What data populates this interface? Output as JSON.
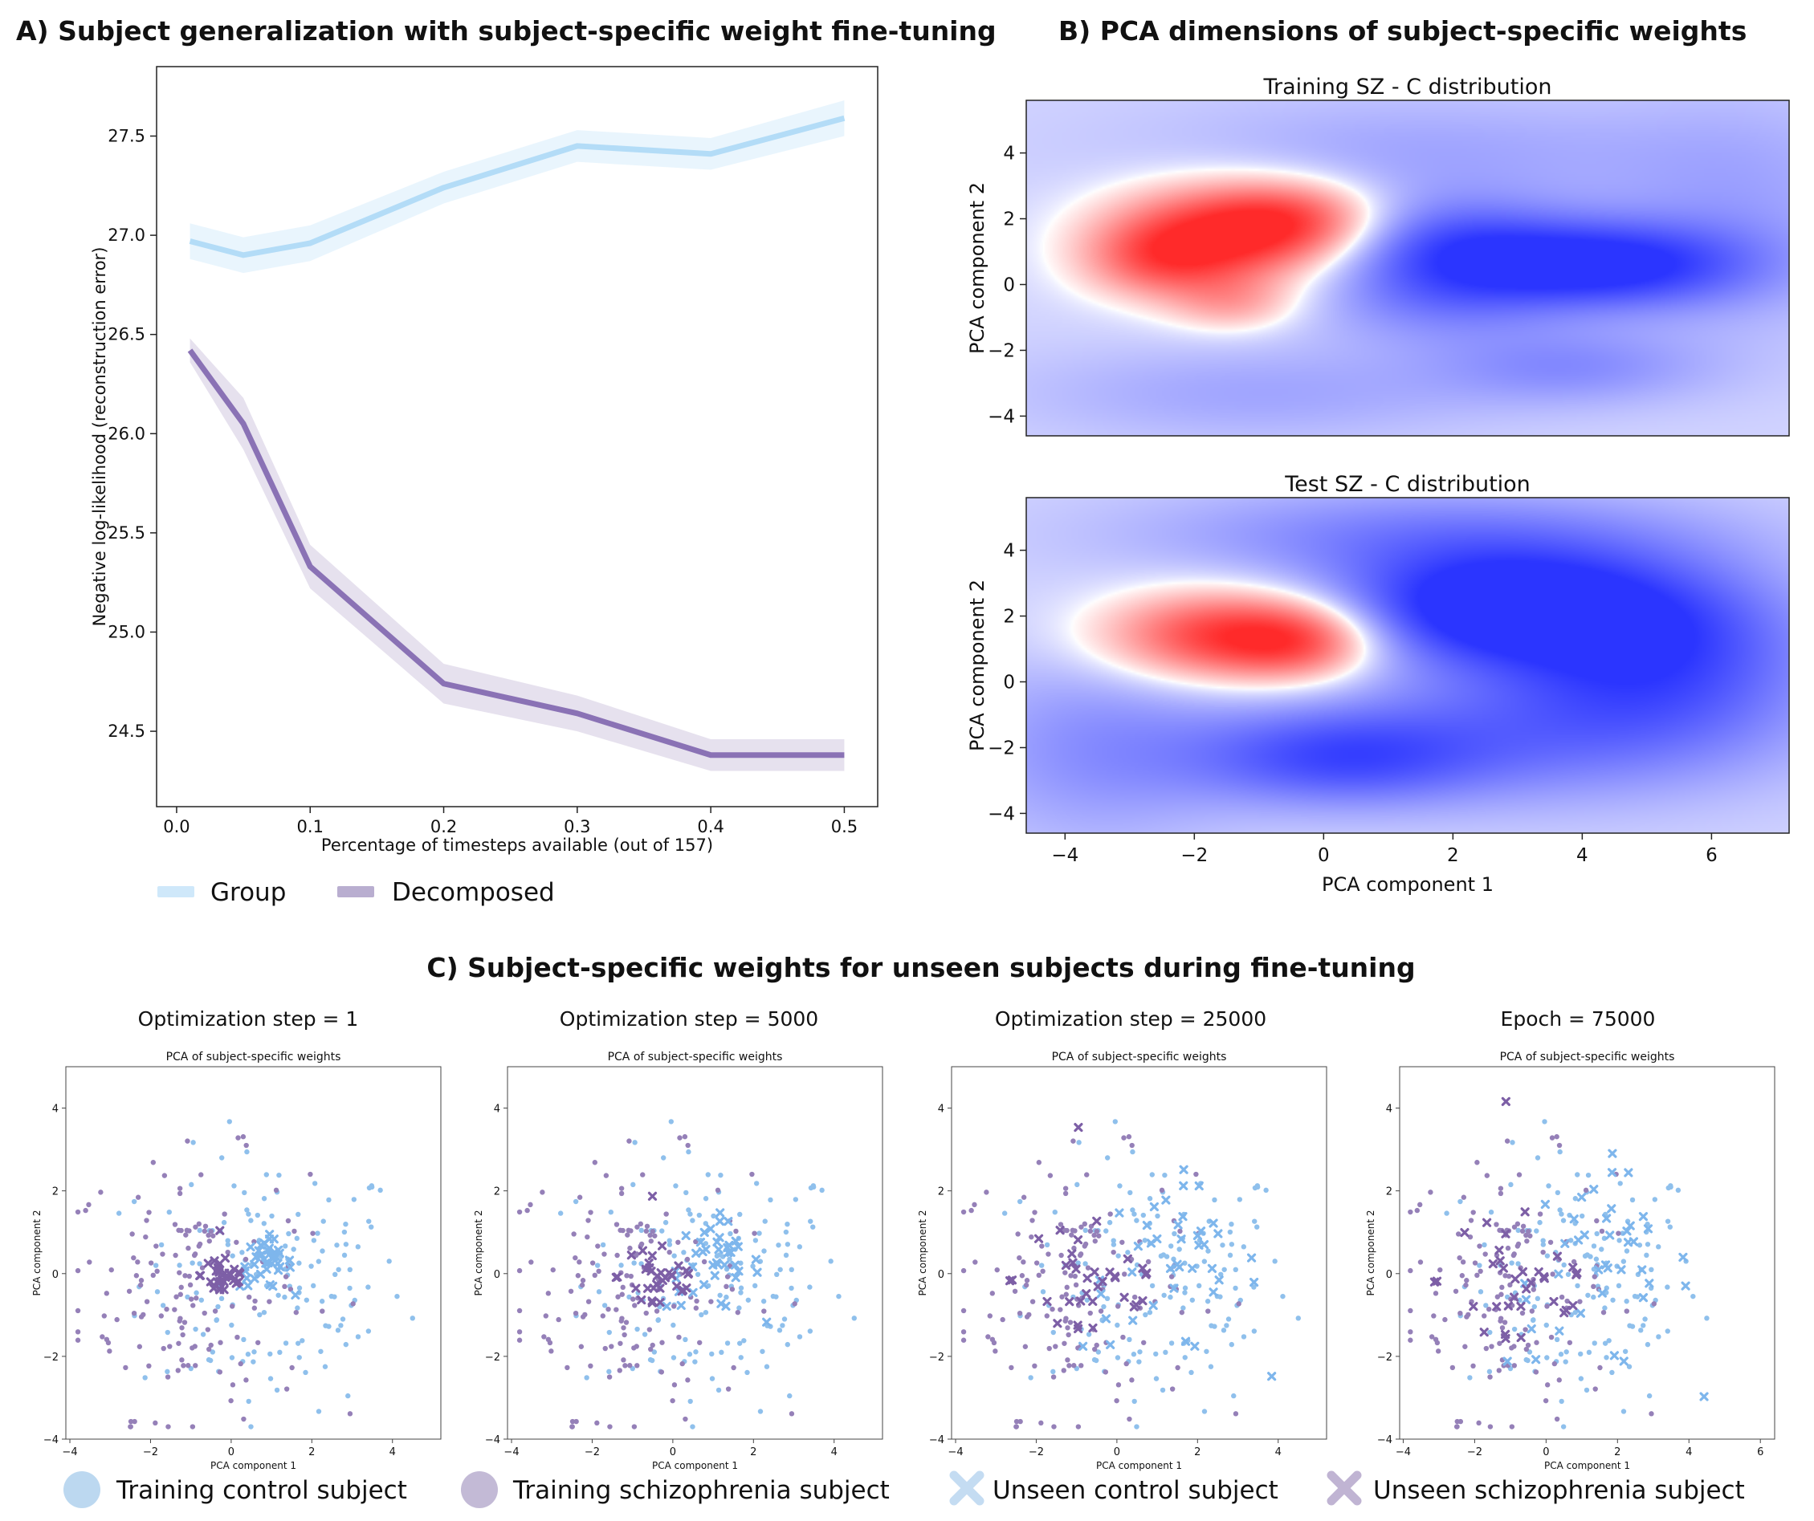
{
  "figure": {
    "panel_a_title": "A)  Subject generalization with subject-specific weight fine-tuning",
    "panel_b_title": "B)  PCA dimensions of subject-specific weights",
    "panel_c_title": "C)  Subject-specific weights for unseen subjects during fine-tuning"
  },
  "colors": {
    "group": "#b3dcf7",
    "decomposed": "#8a72b5",
    "training_control": "#8fc0ec",
    "training_schizophrenia": "#9580b8",
    "unseen_control": "#7eb6ec",
    "unseen_schizophrenia": "#7d5fa6",
    "heat_red": "#ff2a2a",
    "heat_blue": "#2b35ff"
  },
  "chart_data": [
    {
      "id": "A",
      "type": "line",
      "title": "A)  Subject generalization with subject-specific weight fine-tuning",
      "xlabel": "Percentage of timesteps available (out of 157)",
      "ylabel": "Negative log-likelihood (reconstruction error)",
      "xlim": [
        -0.015,
        0.525
      ],
      "ylim": [
        24.12,
        27.85
      ],
      "xticks": [
        0.0,
        0.1,
        0.2,
        0.3,
        0.4,
        0.5
      ],
      "xtick_labels": [
        "0.0",
        "0.1",
        "0.2",
        "0.3",
        "0.4",
        "0.5"
      ],
      "yticks": [
        24.5,
        25.0,
        25.5,
        26.0,
        26.5,
        27.0,
        27.5
      ],
      "ytick_labels": [
        "24.5",
        "25.0",
        "25.5",
        "26.0",
        "26.5",
        "27.0",
        "27.5"
      ],
      "legend": [
        "Group",
        "Decomposed"
      ],
      "legend_position": "below",
      "x": [
        0.01,
        0.05,
        0.1,
        0.2,
        0.3,
        0.4,
        0.5
      ],
      "series": [
        {
          "name": "Group",
          "values": [
            26.97,
            26.9,
            26.96,
            27.24,
            27.45,
            27.41,
            27.59
          ],
          "lower": [
            26.88,
            26.81,
            26.87,
            27.16,
            27.37,
            27.33,
            27.5
          ],
          "upper": [
            27.06,
            26.99,
            27.05,
            27.32,
            27.53,
            27.49,
            27.68
          ]
        },
        {
          "name": "Decomposed",
          "values": [
            26.42,
            26.05,
            25.33,
            24.74,
            24.59,
            24.38,
            24.38
          ],
          "lower": [
            26.36,
            25.92,
            25.22,
            24.64,
            24.5,
            24.3,
            24.3
          ],
          "upper": [
            26.48,
            26.18,
            25.44,
            24.84,
            24.68,
            24.46,
            24.46
          ]
        }
      ]
    },
    {
      "id": "B1",
      "type": "heatmap",
      "title": "Training SZ - C distribution",
      "ylabel": "PCA component 2",
      "xlim": [
        -4.6,
        7.2
      ],
      "ylim": [
        -4.6,
        5.6
      ],
      "yticks": [
        -4,
        -2,
        0,
        2,
        4
      ],
      "ytick_labels": [
        "−4",
        "−2",
        "0",
        "2",
        "4"
      ],
      "blobs": [
        {
          "x": -1.6,
          "y": 1.5,
          "sx": 1.25,
          "sy": 1.1,
          "w": 1.0
        },
        {
          "x": -0.4,
          "y": 2.0,
          "sx": 0.9,
          "sy": 0.8,
          "w": 0.55
        },
        {
          "x": -2.6,
          "y": 0.7,
          "sx": 0.8,
          "sy": 0.8,
          "w": 0.45
        },
        {
          "x": -1.4,
          "y": -0.6,
          "sx": 0.7,
          "sy": 0.6,
          "w": 0.35
        },
        {
          "x": 4.4,
          "y": 0.6,
          "sx": 1.5,
          "sy": 0.9,
          "w": -0.85
        },
        {
          "x": 2.0,
          "y": 1.2,
          "sx": 1.3,
          "sy": 1.0,
          "w": -0.55
        },
        {
          "x": 1.8,
          "y": -0.4,
          "sx": 1.4,
          "sy": 1.0,
          "w": -0.35
        },
        {
          "x": 3.8,
          "y": -2.5,
          "sx": 1.5,
          "sy": 0.8,
          "w": -0.3
        },
        {
          "x": 1.5,
          "y": 4.0,
          "sx": 3.0,
          "sy": 1.2,
          "w": -0.2
        },
        {
          "x": -1.0,
          "y": -3.3,
          "sx": 2.5,
          "sy": 1.0,
          "w": -0.2
        },
        {
          "x": 6.5,
          "y": 2.0,
          "sx": 1.5,
          "sy": 2.5,
          "w": -0.2
        }
      ]
    },
    {
      "id": "B2",
      "type": "heatmap",
      "title": "Test SZ - C distribution",
      "xlabel": "PCA component 1",
      "ylabel": "PCA component 2",
      "xlim": [
        -4.6,
        7.2
      ],
      "ylim": [
        -4.6,
        5.6
      ],
      "xticks": [
        -4,
        -2,
        0,
        2,
        4,
        6
      ],
      "xtick_labels": [
        "−4",
        "−2",
        "0",
        "2",
        "4",
        "6"
      ],
      "yticks": [
        -4,
        -2,
        0,
        2,
        4
      ],
      "ytick_labels": [
        "−4",
        "−2",
        "0",
        "2",
        "4"
      ],
      "blobs": [
        {
          "x": -1.5,
          "y": 1.4,
          "sx": 1.3,
          "sy": 0.95,
          "w": 1.0
        },
        {
          "x": -0.3,
          "y": 1.2,
          "sx": 0.8,
          "sy": 0.8,
          "w": 0.5
        },
        {
          "x": 2.7,
          "y": 2.3,
          "sx": 1.8,
          "sy": 1.2,
          "w": -1.0
        },
        {
          "x": 5.2,
          "y": 1.0,
          "sx": 1.7,
          "sy": 1.8,
          "w": -0.65
        },
        {
          "x": 0.2,
          "y": -2.3,
          "sx": 1.6,
          "sy": 1.0,
          "w": -0.6
        },
        {
          "x": 3.5,
          "y": -1.5,
          "sx": 2.5,
          "sy": 1.5,
          "w": -0.4
        },
        {
          "x": -3.5,
          "y": -2.0,
          "sx": 1.5,
          "sy": 2.0,
          "w": -0.3
        },
        {
          "x": 1.5,
          "y": 4.5,
          "sx": 3.0,
          "sy": 1.0,
          "w": -0.35
        }
      ]
    },
    {
      "id": "C1",
      "type": "scatter",
      "heading": "Optimization step = 1",
      "title": "PCA of subject-specific weights",
      "xlabel": "PCA component 1",
      "ylabel": "PCA component 2",
      "xlim": [
        -4.1,
        5.2
      ],
      "ylim": [
        -4.0,
        5.0
      ],
      "xticks": [
        -4,
        -2,
        0,
        2,
        4
      ],
      "xtick_labels": [
        "−4",
        "−2",
        "0",
        "2",
        "4"
      ],
      "yticks": [
        -4,
        -2,
        0,
        2,
        4
      ],
      "ytick_labels": [
        "−4",
        "−2",
        "0",
        "2",
        "4"
      ],
      "unseen_spread": 0.25
    },
    {
      "id": "C2",
      "type": "scatter",
      "heading": "Optimization step = 5000",
      "title": "PCA of subject-specific weights",
      "xlabel": "PCA component 1",
      "ylabel": "PCA component 2",
      "xlim": [
        -4.1,
        5.2
      ],
      "ylim": [
        -4.0,
        5.0
      ],
      "xticks": [
        -4,
        -2,
        0,
        2,
        4
      ],
      "xtick_labels": [
        "−4",
        "−2",
        "0",
        "2",
        "4"
      ],
      "yticks": [
        -4,
        -2,
        0,
        2,
        4
      ],
      "ytick_labels": [
        "−4",
        "−2",
        "0",
        "2",
        "4"
      ],
      "unseen_spread": 0.45
    },
    {
      "id": "C3",
      "type": "scatter",
      "heading": "Optimization step = 25000",
      "title": "PCA of subject-specific weights",
      "xlabel": "PCA component 1",
      "ylabel": "PCA component 2",
      "xlim": [
        -4.1,
        5.2
      ],
      "ylim": [
        -4.0,
        5.0
      ],
      "xticks": [
        -4,
        -2,
        0,
        2,
        4
      ],
      "xtick_labels": [
        "−4",
        "−2",
        "0",
        "2",
        "4"
      ],
      "yticks": [
        -4,
        -2,
        0,
        2,
        4
      ],
      "ytick_labels": [
        "−4",
        "−2",
        "0",
        "2",
        "4"
      ],
      "unseen_spread": 0.85
    },
    {
      "id": "C4",
      "type": "scatter",
      "heading": "Epoch = 75000",
      "title": "PCA of subject-specific weights",
      "xlabel": "PCA component 1",
      "ylabel": "PCA component 2",
      "xlim": [
        -4.1,
        6.4
      ],
      "ylim": [
        -4.0,
        5.0
      ],
      "xticks": [
        -4,
        -2,
        0,
        2,
        4,
        6
      ],
      "xtick_labels": [
        "−4",
        "−2",
        "0",
        "2",
        "4",
        "6"
      ],
      "yticks": [
        -4,
        -2,
        0,
        2,
        4
      ],
      "ytick_labels": [
        "−4",
        "−2",
        "0",
        "2",
        "4"
      ],
      "unseen_spread": 1.0
    }
  ],
  "legend_c": {
    "training_control": "Training control subject",
    "training_schizophrenia": "Training schizophrenia subject",
    "unseen_control": "Unseen control subject",
    "unseen_schizophrenia": "Unseen schizophrenia subject"
  }
}
